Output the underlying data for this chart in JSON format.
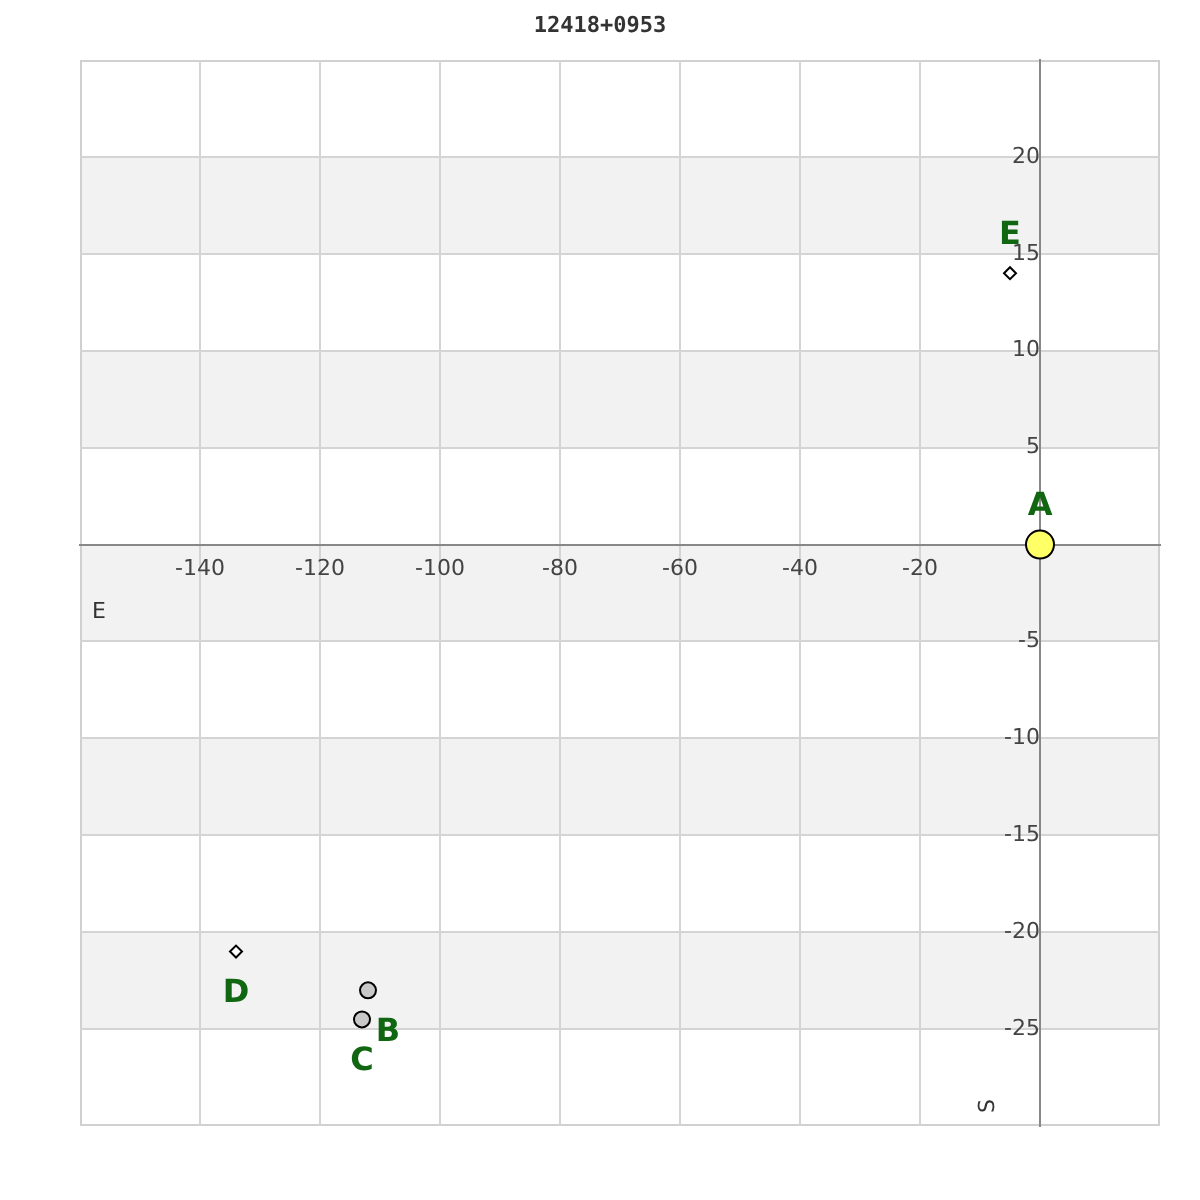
{
  "chart_data": {
    "type": "scatter",
    "title": "12418+0953",
    "xlabel": "E",
    "ylabel": "S",
    "xlim": [
      -160,
      20
    ],
    "ylim": [
      -30,
      25
    ],
    "xticks": [
      -140,
      -120,
      -100,
      -80,
      -60,
      -40,
      -20
    ],
    "yticks": [
      -25,
      -20,
      -15,
      -10,
      -5,
      5,
      10,
      15,
      20
    ],
    "grid": true,
    "bands": [
      {
        "axis": "y",
        "from": 15,
        "to": 20,
        "color": "#f2f2f2"
      },
      {
        "axis": "y",
        "from": 5,
        "to": 10,
        "color": "#f2f2f2"
      },
      {
        "axis": "y",
        "from": -5,
        "to": 0,
        "color": "#f2f2f2"
      },
      {
        "axis": "y",
        "from": -15,
        "to": -10,
        "color": "#f2f2f2"
      },
      {
        "axis": "y",
        "from": -25,
        "to": -20,
        "color": "#f2f2f2"
      }
    ],
    "series": [
      {
        "color": "#ffff66",
        "marker": "circle",
        "x": [
          0
        ],
        "values": [
          0
        ]
      },
      {
        "color": "#c8c8c8",
        "marker": "circle",
        "x": [
          -112,
          -113
        ],
        "values": [
          -23,
          -24.5
        ]
      },
      {
        "color": "#ffffff",
        "marker": "diamond",
        "x": [
          -5,
          -134
        ],
        "values": [
          14,
          -21
        ]
      }
    ],
    "annotations": [
      {
        "text": "A",
        "x": 0,
        "y": 0
      },
      {
        "text": "B",
        "x": -112,
        "y": -23
      },
      {
        "text": "C",
        "x": -113,
        "y": -24.5
      },
      {
        "text": "D",
        "x": -134,
        "y": -21
      },
      {
        "text": "E",
        "x": -5,
        "y": 14
      }
    ]
  }
}
